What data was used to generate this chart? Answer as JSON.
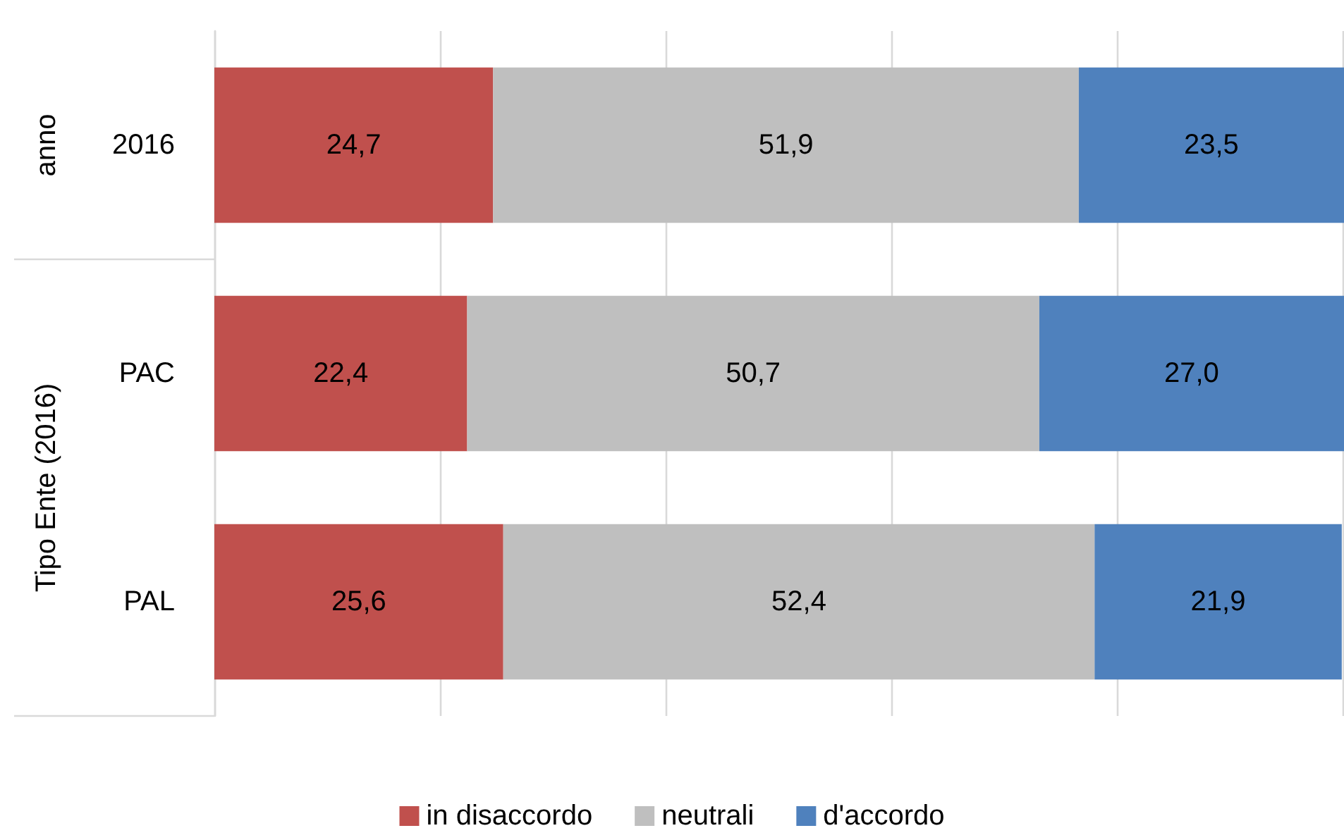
{
  "chart_data": {
    "type": "bar",
    "orientation": "horizontal",
    "stacked": true,
    "categories": [
      "2016",
      "PAC",
      "PAL"
    ],
    "series": [
      {
        "name": "in disaccordo",
        "color": "#c0504d",
        "values": [
          24.7,
          22.4,
          25.6
        ],
        "value_labels": [
          "24,7",
          "22,4",
          "25,6"
        ]
      },
      {
        "name": "neutrali",
        "color": "#bfbfbf",
        "values": [
          51.9,
          50.7,
          52.4
        ],
        "value_labels": [
          "51,9",
          "50,7",
          "52,4"
        ]
      },
      {
        "name": "d'accordo",
        "color": "#4f81bd",
        "values": [
          23.5,
          27.0,
          21.9
        ],
        "value_labels": [
          "23,5",
          "27,0",
          "21,9"
        ]
      }
    ],
    "tick_labels": "y",
    "grid": "x",
    "legend": "bottom",
    "annotations": [
      "anno",
      "Tipo Ente (2016)"
    ]
  }
}
